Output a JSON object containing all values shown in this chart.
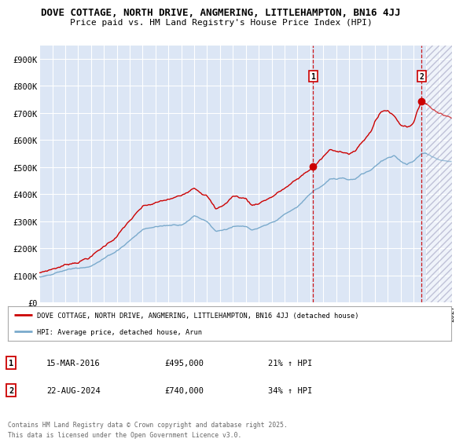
{
  "title_line1": "DOVE COTTAGE, NORTH DRIVE, ANGMERING, LITTLEHAMPTON, BN16 4JJ",
  "title_line2": "Price paid vs. HM Land Registry's House Price Index (HPI)",
  "bg_color": "#ffffff",
  "plot_bg_color": "#dce6f5",
  "grid_color": "#ffffff",
  "red_color": "#cc0000",
  "blue_color": "#7aaacc",
  "marker1_date": "15-MAR-2016",
  "marker1_price": "£495,000",
  "marker1_hpi": "21% ↑ HPI",
  "marker1_x": 2016.21,
  "marker1_y": 495000,
  "marker2_date": "22-AUG-2024",
  "marker2_price": "£740,000",
  "marker2_hpi": "34% ↑ HPI",
  "marker2_x": 2024.64,
  "marker2_y": 740000,
  "xmin": 1995,
  "xmax": 2027,
  "ymin": 0,
  "ymax": 950000,
  "yticks": [
    0,
    100000,
    200000,
    300000,
    400000,
    500000,
    600000,
    700000,
    800000,
    900000
  ],
  "ytick_labels": [
    "£0",
    "£100K",
    "£200K",
    "£300K",
    "£400K",
    "£500K",
    "£600K",
    "£700K",
    "£800K",
    "£900K"
  ],
  "legend_label_red": "DOVE COTTAGE, NORTH DRIVE, ANGMERING, LITTLEHAMPTON, BN16 4JJ (detached house)",
  "legend_label_blue": "HPI: Average price, detached house, Arun",
  "footer_text": "Contains HM Land Registry data © Crown copyright and database right 2025.\nThis data is licensed under the Open Government Licence v3.0.",
  "hatch_start": 2025.0
}
